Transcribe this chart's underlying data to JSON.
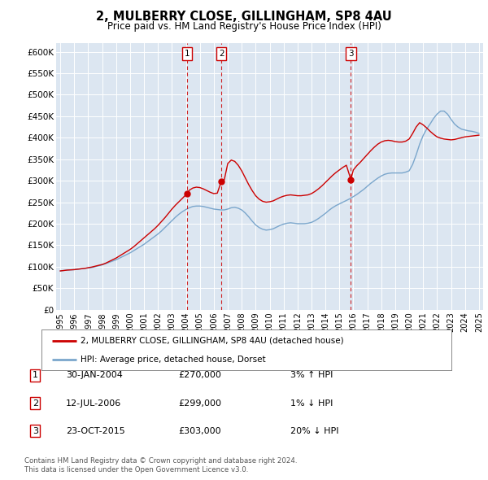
{
  "title": "2, MULBERRY CLOSE, GILLINGHAM, SP8 4AU",
  "subtitle": "Price paid vs. HM Land Registry's House Price Index (HPI)",
  "legend_line1": "2, MULBERRY CLOSE, GILLINGHAM, SP8 4AU (detached house)",
  "legend_line2": "HPI: Average price, detached house, Dorset",
  "footer1": "Contains HM Land Registry data © Crown copyright and database right 2024.",
  "footer2": "This data is licensed under the Open Government Licence v3.0.",
  "ytick_labels": [
    "£0",
    "£50K",
    "£100K",
    "£150K",
    "£200K",
    "£250K",
    "£300K",
    "£350K",
    "£400K",
    "£450K",
    "£500K",
    "£550K",
    "£600K"
  ],
  "ytick_values": [
    0,
    50000,
    100000,
    150000,
    200000,
    250000,
    300000,
    350000,
    400000,
    450000,
    500000,
    550000,
    600000
  ],
  "ylim": [
    0,
    620000
  ],
  "plot_bg_color": "#dce6f1",
  "grid_color": "#ffffff",
  "red_line_color": "#cc0000",
  "blue_line_color": "#7aa6cc",
  "transaction_dates": [
    2004.08,
    2006.54,
    2015.82
  ],
  "transaction_prices": [
    270000,
    299000,
    303000
  ],
  "transaction_labels": [
    "1",
    "2",
    "3"
  ],
  "sale_info": [
    {
      "label": "1",
      "date": "30-JAN-2004",
      "price": "£270,000",
      "hpi": "3% ↑ HPI"
    },
    {
      "label": "2",
      "date": "12-JUL-2006",
      "price": "£299,000",
      "hpi": "1% ↓ HPI"
    },
    {
      "label": "3",
      "date": "23-OCT-2015",
      "price": "£303,000",
      "hpi": "20% ↓ HPI"
    }
  ],
  "hpi_x": [
    1995.0,
    1995.25,
    1995.5,
    1995.75,
    1996.0,
    1996.25,
    1996.5,
    1996.75,
    1997.0,
    1997.25,
    1997.5,
    1997.75,
    1998.0,
    1998.25,
    1998.5,
    1998.75,
    1999.0,
    1999.25,
    1999.5,
    1999.75,
    2000.0,
    2000.25,
    2000.5,
    2000.75,
    2001.0,
    2001.25,
    2001.5,
    2001.75,
    2002.0,
    2002.25,
    2002.5,
    2002.75,
    2003.0,
    2003.25,
    2003.5,
    2003.75,
    2004.0,
    2004.25,
    2004.5,
    2004.75,
    2005.0,
    2005.25,
    2005.5,
    2005.75,
    2006.0,
    2006.25,
    2006.5,
    2006.75,
    2007.0,
    2007.25,
    2007.5,
    2007.75,
    2008.0,
    2008.25,
    2008.5,
    2008.75,
    2009.0,
    2009.25,
    2009.5,
    2009.75,
    2010.0,
    2010.25,
    2010.5,
    2010.75,
    2011.0,
    2011.25,
    2011.5,
    2011.75,
    2012.0,
    2012.25,
    2012.5,
    2012.75,
    2013.0,
    2013.25,
    2013.5,
    2013.75,
    2014.0,
    2014.25,
    2014.5,
    2014.75,
    2015.0,
    2015.25,
    2015.5,
    2015.75,
    2016.0,
    2016.25,
    2016.5,
    2016.75,
    2017.0,
    2017.25,
    2017.5,
    2017.75,
    2018.0,
    2018.25,
    2018.5,
    2018.75,
    2019.0,
    2019.25,
    2019.5,
    2019.75,
    2020.0,
    2020.25,
    2020.5,
    2020.75,
    2021.0,
    2021.25,
    2021.5,
    2021.75,
    2022.0,
    2022.25,
    2022.5,
    2022.75,
    2023.0,
    2023.25,
    2023.5,
    2023.75,
    2024.0,
    2024.25,
    2024.5,
    2024.75,
    2025.0
  ],
  "hpi_y": [
    90000,
    91000,
    92000,
    92500,
    93000,
    94000,
    95000,
    96000,
    97000,
    98000,
    100000,
    102000,
    104000,
    107000,
    110000,
    113000,
    116000,
    120000,
    124000,
    128000,
    132000,
    137000,
    142000,
    147000,
    152000,
    158000,
    164000,
    170000,
    176000,
    183000,
    191000,
    199000,
    207000,
    215000,
    222000,
    228000,
    233000,
    237000,
    240000,
    241000,
    241000,
    240000,
    238000,
    236000,
    234000,
    233000,
    232000,
    232000,
    234000,
    237000,
    238000,
    236000,
    232000,
    225000,
    216000,
    206000,
    197000,
    191000,
    187000,
    185000,
    186000,
    188000,
    192000,
    196000,
    199000,
    201000,
    202000,
    201000,
    200000,
    200000,
    200000,
    201000,
    203000,
    207000,
    212000,
    218000,
    224000,
    231000,
    237000,
    242000,
    246000,
    250000,
    254000,
    258000,
    263000,
    268000,
    274000,
    280000,
    287000,
    294000,
    300000,
    306000,
    311000,
    315000,
    317000,
    318000,
    318000,
    318000,
    318000,
    320000,
    323000,
    338000,
    360000,
    385000,
    405000,
    420000,
    432000,
    445000,
    455000,
    462000,
    462000,
    455000,
    443000,
    432000,
    425000,
    420000,
    418000,
    416000,
    415000,
    413000,
    410000
  ],
  "prop_x": [
    1995.0,
    1995.25,
    1995.5,
    1995.75,
    1996.0,
    1996.25,
    1996.5,
    1996.75,
    1997.0,
    1997.25,
    1997.5,
    1997.75,
    1998.0,
    1998.25,
    1998.5,
    1998.75,
    1999.0,
    1999.25,
    1999.5,
    1999.75,
    2000.0,
    2000.25,
    2000.5,
    2000.75,
    2001.0,
    2001.25,
    2001.5,
    2001.75,
    2002.0,
    2002.25,
    2002.5,
    2002.75,
    2003.0,
    2003.25,
    2003.5,
    2003.75,
    2004.08,
    2004.25,
    2004.5,
    2004.75,
    2005.0,
    2005.25,
    2005.5,
    2005.75,
    2006.0,
    2006.25,
    2006.54,
    2006.75,
    2007.0,
    2007.25,
    2007.5,
    2007.75,
    2008.0,
    2008.25,
    2008.5,
    2008.75,
    2009.0,
    2009.25,
    2009.5,
    2009.75,
    2010.0,
    2010.25,
    2010.5,
    2010.75,
    2011.0,
    2011.25,
    2011.5,
    2011.75,
    2012.0,
    2012.25,
    2012.5,
    2012.75,
    2013.0,
    2013.25,
    2013.5,
    2013.75,
    2014.0,
    2014.25,
    2014.5,
    2014.75,
    2015.0,
    2015.25,
    2015.5,
    2015.82,
    2016.0,
    2016.25,
    2016.5,
    2016.75,
    2017.0,
    2017.25,
    2017.5,
    2017.75,
    2018.0,
    2018.25,
    2018.5,
    2018.75,
    2019.0,
    2019.25,
    2019.5,
    2019.75,
    2020.0,
    2020.25,
    2020.5,
    2020.75,
    2021.0,
    2021.25,
    2021.5,
    2021.75,
    2022.0,
    2022.25,
    2022.5,
    2022.75,
    2023.0,
    2023.25,
    2023.5,
    2023.75,
    2024.0,
    2024.25,
    2024.5,
    2024.75,
    2025.0
  ],
  "prop_y": [
    90000,
    91000,
    92000,
    92500,
    93000,
    94000,
    95000,
    96000,
    97500,
    99000,
    101000,
    103000,
    105000,
    108000,
    112000,
    116000,
    120000,
    125000,
    130000,
    135000,
    140000,
    146000,
    153000,
    160000,
    167000,
    174000,
    181000,
    188000,
    196000,
    205000,
    214000,
    224000,
    234000,
    243000,
    251000,
    259000,
    270000,
    278000,
    283000,
    285000,
    284000,
    281000,
    277000,
    273000,
    270000,
    271000,
    299000,
    302000,
    340000,
    348000,
    345000,
    336000,
    323000,
    307000,
    291000,
    277000,
    265000,
    257000,
    252000,
    250000,
    251000,
    253000,
    257000,
    261000,
    264000,
    266000,
    267000,
    266000,
    265000,
    265000,
    266000,
    267000,
    270000,
    275000,
    281000,
    288000,
    296000,
    304000,
    312000,
    319000,
    325000,
    331000,
    336000,
    303000,
    325000,
    335000,
    343000,
    352000,
    361000,
    370000,
    378000,
    385000,
    390000,
    393000,
    394000,
    393000,
    391000,
    390000,
    390000,
    392000,
    397000,
    410000,
    425000,
    435000,
    430000,
    423000,
    415000,
    408000,
    402000,
    399000,
    397000,
    396000,
    395000,
    396000,
    398000,
    400000,
    402000,
    403000,
    404000,
    405000,
    406000
  ],
  "xtick_years": [
    1995,
    1996,
    1997,
    1998,
    1999,
    2000,
    2001,
    2002,
    2003,
    2004,
    2005,
    2006,
    2007,
    2008,
    2009,
    2010,
    2011,
    2012,
    2013,
    2014,
    2015,
    2016,
    2017,
    2018,
    2019,
    2020,
    2021,
    2022,
    2023,
    2024,
    2025
  ]
}
